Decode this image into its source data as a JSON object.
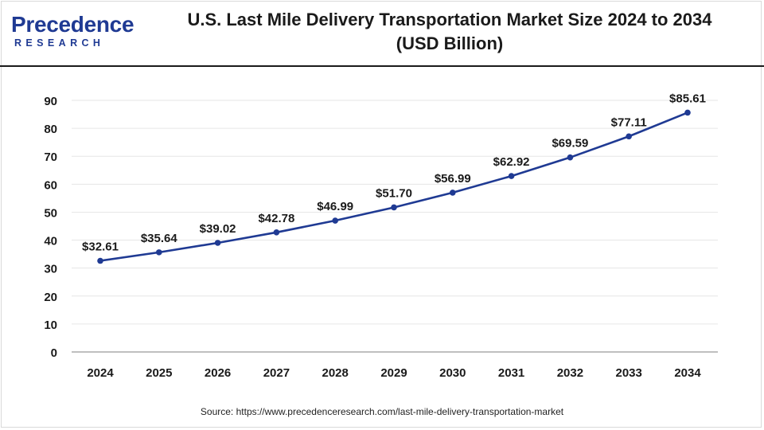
{
  "logo": {
    "brand_main": "recedence",
    "brand_initial": "P",
    "brand_sub": "RESEARCH"
  },
  "chart_data": {
    "type": "line",
    "title_line1": "U.S. Last Mile Delivery Transportation Market Size 2024 to 2034",
    "title_line2": "(USD Billion)",
    "xlabel": "",
    "ylabel": "",
    "categories": [
      "2024",
      "2025",
      "2026",
      "2027",
      "2028",
      "2029",
      "2030",
      "2031",
      "2032",
      "2033",
      "2034"
    ],
    "series": [
      {
        "name": "Market Size (USD Billion)",
        "values": [
          32.61,
          35.64,
          39.02,
          42.78,
          46.99,
          51.7,
          56.99,
          62.92,
          69.59,
          77.11,
          85.61
        ],
        "labels": [
          "$32.61",
          "$35.64",
          "$39.02",
          "$42.78",
          "$46.99",
          "$51.70",
          "$56.99",
          "$62.92",
          "$69.59",
          "$77.11",
          "$85.61"
        ],
        "color": "#1f3a93"
      }
    ],
    "ylim": [
      0,
      90
    ],
    "yticks": [
      0,
      10,
      20,
      30,
      40,
      50,
      60,
      70,
      80,
      90
    ],
    "grid": true,
    "legend": "none"
  },
  "source": "Source: https://www.precedenceresearch.com/last-mile-delivery-transportation-market",
  "colors": {
    "line": "#1f3a93",
    "grid": "#e6e6e6",
    "axis": "#999999",
    "text": "#1a1a1a"
  }
}
